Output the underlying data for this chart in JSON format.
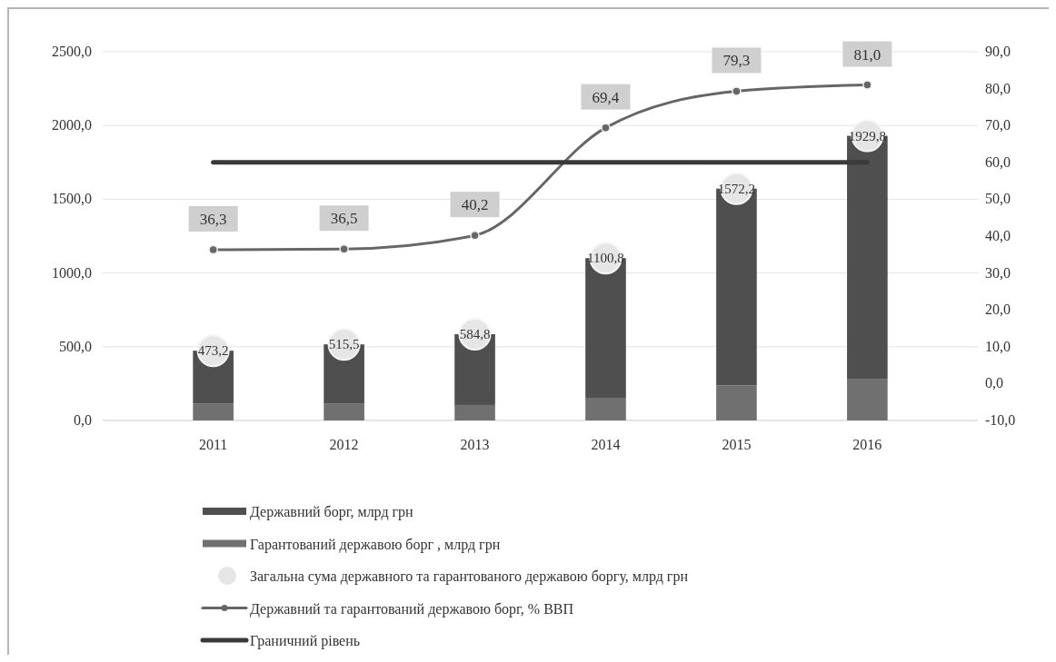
{
  "chart_data": {
    "type": "bar",
    "stacked": true,
    "categories": [
      "2011",
      "2012",
      "2013",
      "2014",
      "2015",
      "2016"
    ],
    "series": [
      {
        "name": "Гарантований  державою борг , млрд грн",
        "color": "#707070",
        "values": [
          116,
          116,
          105,
          154,
          238,
          279
        ]
      },
      {
        "name": "Державний борг, млрд грн",
        "color": "#4f4f4f",
        "values": [
          357,
          400,
          480,
          947,
          1334,
          1651
        ]
      },
      {
        "name": "Загальна сума державного та  гарантованого державою боргу, млрд грн",
        "type": "scatter",
        "marker": "circle",
        "color": "#e6e6e6",
        "values": [
          473.2,
          515.5,
          584.8,
          1100.8,
          1572.2,
          1929.8
        ],
        "value_labels": [
          "473,2",
          "515,5",
          "584,8",
          "1100,8",
          "1572,2",
          "1929,8"
        ]
      },
      {
        "name": "Державний та гарантований державою борг, % ВВП",
        "type": "line",
        "axis": "y2",
        "marker": "circle",
        "color": "#666666",
        "values": [
          36.3,
          36.5,
          40.2,
          69.4,
          79.3,
          81.0
        ],
        "value_labels": [
          "36,3",
          "36,5",
          "40,2",
          "69,4",
          "79,3",
          "81,0"
        ]
      },
      {
        "name": "Граничний рівень",
        "type": "line",
        "axis": "y2",
        "marker": "none",
        "color": "#3a3a3a",
        "values": [
          60,
          60,
          60,
          60,
          60,
          60
        ]
      }
    ],
    "ylim": [
      0,
      2500
    ],
    "yticks": [
      {
        "value": 0,
        "label": "0,0"
      },
      {
        "value": 500,
        "label": "500,0"
      },
      {
        "value": 1000,
        "label": "1000,0"
      },
      {
        "value": 1500,
        "label": "1500,0"
      },
      {
        "value": 2000,
        "label": "2000,0"
      },
      {
        "value": 2500,
        "label": "2500,0"
      }
    ],
    "y2lim": [
      -10,
      90
    ],
    "y2ticks": [
      {
        "value": -10,
        "label": "-10,0"
      },
      {
        "value": 0,
        "label": "0,0"
      },
      {
        "value": 10,
        "label": "10,0"
      },
      {
        "value": 20,
        "label": "20,0"
      },
      {
        "value": 30,
        "label": "30,0"
      },
      {
        "value": 40,
        "label": "40,0"
      },
      {
        "value": 50,
        "label": "50,0"
      },
      {
        "value": 60,
        "label": "60,0"
      },
      {
        "value": 70,
        "label": "70,0"
      },
      {
        "value": 80,
        "label": "80,0"
      },
      {
        "value": 90,
        "label": "90,0"
      }
    ],
    "grid": "y",
    "legend": "bottom"
  }
}
